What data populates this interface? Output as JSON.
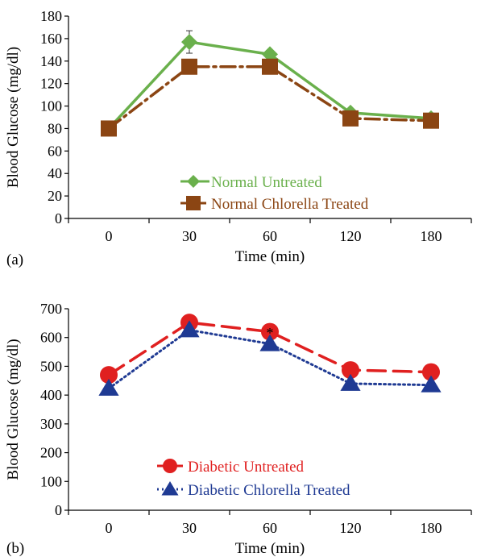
{
  "chart_data": [
    {
      "type": "line",
      "panel_label": "(a)",
      "xlabel": "Time (min)",
      "ylabel": "Blood Glucose (mg/dl)",
      "categories": [
        "0",
        "30",
        "60",
        "120",
        "180"
      ],
      "ylim": [
        0,
        180
      ],
      "yticks": [
        "0",
        "20",
        "40",
        "60",
        "80",
        "100",
        "120",
        "140",
        "160",
        "180"
      ],
      "grid": false,
      "legend_position": "bottom-center",
      "annotations": [],
      "series": [
        {
          "name": "Normal Untreated",
          "values": [
            80,
            157,
            146,
            94,
            89
          ],
          "error": [
            0,
            10,
            0,
            0,
            0
          ],
          "color": "#6ab04c",
          "marker": "diamond",
          "line": "solid"
        },
        {
          "name": "Normal Chlorella Treated",
          "values": [
            80,
            135,
            135,
            89,
            87
          ],
          "color": "#8b4513",
          "marker": "square",
          "line": "dash-dot"
        }
      ]
    },
    {
      "type": "line",
      "panel_label": "(b)",
      "xlabel": "Time (min)",
      "ylabel": "Blood Glucose (mg/dl)",
      "categories": [
        "0",
        "30",
        "60",
        "120",
        "180"
      ],
      "ylim": [
        0,
        700
      ],
      "yticks": [
        "0",
        "100",
        "200",
        "300",
        "400",
        "500",
        "600",
        "700"
      ],
      "grid": false,
      "legend_position": "bottom-center",
      "annotations": [
        {
          "text": "*",
          "category_index": 2,
          "y": 622
        }
      ],
      "series": [
        {
          "name": "Diabetic Untreated",
          "values": [
            470,
            652,
            620,
            487,
            480
          ],
          "color": "#e02020",
          "marker": "circle",
          "line": "long-dash"
        },
        {
          "name": "Diabetic Chlorella Treated",
          "values": [
            423,
            626,
            578,
            440,
            435
          ],
          "color": "#1f3a93",
          "marker": "triangle",
          "line": "dotted"
        }
      ]
    }
  ]
}
